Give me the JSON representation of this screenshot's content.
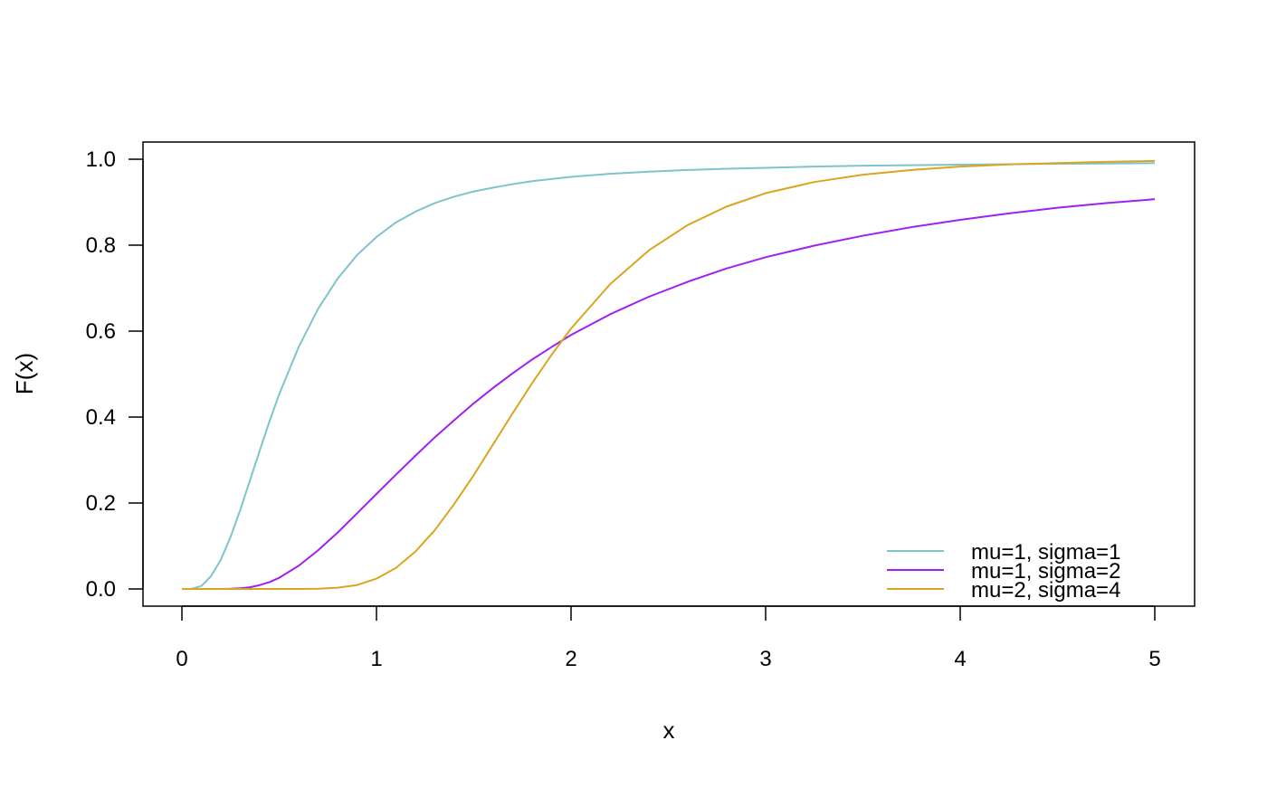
{
  "chart_data": {
    "type": "line",
    "title": "",
    "xlabel": "x",
    "ylabel": "F(x)",
    "xlim": [
      0,
      5
    ],
    "ylim": [
      0,
      1
    ],
    "x_ticks": [
      0,
      1,
      2,
      3,
      4,
      5
    ],
    "x_tick_labels": [
      "0",
      "1",
      "2",
      "3",
      "4",
      "5"
    ],
    "y_ticks": [
      0,
      0.2,
      0.4,
      0.6,
      0.8,
      1.0
    ],
    "y_tick_labels": [
      "0.0",
      "0.2",
      "0.4",
      "0.6",
      "0.8",
      "1.0"
    ],
    "grid": false,
    "legend_position": "bottom-right",
    "x": [
      0,
      0.05,
      0.1,
      0.15,
      0.2,
      0.25,
      0.3,
      0.35,
      0.4,
      0.45,
      0.5,
      0.6,
      0.7,
      0.8,
      0.9,
      1.0,
      1.1,
      1.2,
      1.3,
      1.4,
      1.5,
      1.6,
      1.7,
      1.8,
      1.9,
      2.0,
      2.2,
      2.4,
      2.6,
      2.8,
      3.0,
      3.25,
      3.5,
      3.75,
      4.0,
      4.25,
      4.5,
      4.75,
      5.0
    ],
    "series": [
      {
        "name": "mu=1, sigma=1",
        "color": "#7FC4CB",
        "values": [
          0.0,
          0.0003,
          0.007,
          0.03,
          0.068,
          0.121,
          0.184,
          0.253,
          0.322,
          0.39,
          0.453,
          0.563,
          0.652,
          0.722,
          0.777,
          0.819,
          0.853,
          0.878,
          0.898,
          0.913,
          0.925,
          0.934,
          0.942,
          0.949,
          0.954,
          0.959,
          0.966,
          0.971,
          0.975,
          0.978,
          0.98,
          0.983,
          0.985,
          0.986,
          0.9875,
          0.9885,
          0.9895,
          0.99,
          0.991
        ]
      },
      {
        "name": "mu=1, sigma=2",
        "color": "#A020F0",
        "values": [
          0.0,
          0.0,
          0.0,
          0.0,
          0.0001,
          0.0004,
          0.0015,
          0.004,
          0.009,
          0.016,
          0.026,
          0.054,
          0.09,
          0.131,
          0.176,
          0.221,
          0.266,
          0.31,
          0.353,
          0.393,
          0.432,
          0.468,
          0.502,
          0.534,
          0.563,
          0.591,
          0.639,
          0.68,
          0.715,
          0.746,
          0.772,
          0.799,
          0.822,
          0.842,
          0.859,
          0.874,
          0.887,
          0.898,
          0.907
        ]
      },
      {
        "name": "mu=2, sigma=4",
        "color": "#DAA520",
        "values": [
          0.0,
          0.0,
          0.0,
          0.0,
          0.0,
          0.0,
          0.0,
          0.0,
          0.0,
          0.0,
          0.0,
          0.0001,
          0.0006,
          0.003,
          0.009,
          0.024,
          0.049,
          0.087,
          0.137,
          0.198,
          0.265,
          0.337,
          0.409,
          0.479,
          0.545,
          0.606,
          0.709,
          0.788,
          0.847,
          0.89,
          0.921,
          0.947,
          0.964,
          0.975,
          0.983,
          0.988,
          0.991,
          0.994,
          0.996
        ]
      }
    ]
  }
}
